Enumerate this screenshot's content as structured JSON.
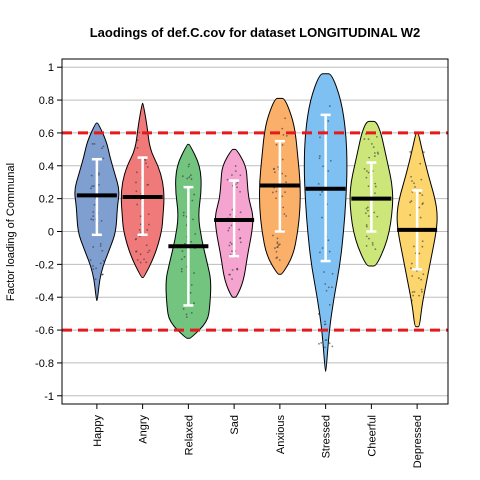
{
  "chart_data": {
    "type": "violin",
    "title": "Laodings of def.C.cov for dataset LONGITUDINAL W2",
    "ylabel": "Factor loading of Communal",
    "xlabel": "",
    "ylim": [
      -1.05,
      1.05
    ],
    "yticks": [
      1,
      0.8,
      0.6,
      0.4,
      0.2,
      0,
      -0.2,
      -0.4,
      -0.6,
      -0.8,
      -1
    ],
    "ytick_labels": [
      "1",
      "0.8",
      "0.6",
      "0.4",
      "0.2",
      "0",
      "-0.2",
      "-0.4",
      "-0.6",
      "-0.8",
      "-1"
    ],
    "grid": true,
    "reference_lines": {
      "values": [
        0.6,
        -0.6
      ],
      "color": "#e41a1c",
      "style": "dashed"
    },
    "categories": [
      "Happy",
      "Angry",
      "Relaxed",
      "Sad",
      "Anxious",
      "Stressed",
      "Cheerful",
      "Depressed"
    ],
    "colors": [
      "#7f9fd0",
      "#f07a7a",
      "#72c47f",
      "#f5a3cf",
      "#fbb06a",
      "#7fc0f2",
      "#cde67a",
      "#fcd56c"
    ],
    "medians": [
      0.22,
      0.21,
      -0.09,
      0.07,
      0.28,
      0.26,
      0.2,
      0.01
    ],
    "iqr_low": [
      -0.02,
      -0.02,
      -0.45,
      -0.15,
      0.0,
      -0.18,
      0.0,
      -0.23
    ],
    "iqr_high": [
      0.44,
      0.45,
      0.27,
      0.31,
      0.55,
      0.71,
      0.42,
      0.25
    ],
    "min": [
      -0.42,
      -0.28,
      -0.65,
      -0.4,
      -0.26,
      -0.85,
      -0.21,
      -0.58
    ],
    "max": [
      0.66,
      0.78,
      0.53,
      0.5,
      0.81,
      0.96,
      0.67,
      0.6
    ],
    "density": [
      {
        "y": [
          -0.42,
          -0.25,
          -0.1,
          0.0,
          0.15,
          0.25,
          0.35,
          0.45,
          0.55,
          0.66
        ],
        "w": [
          0.02,
          0.15,
          0.55,
          0.8,
          0.85,
          0.95,
          0.75,
          0.55,
          0.4,
          0.05
        ]
      },
      {
        "y": [
          -0.28,
          -0.15,
          0.0,
          0.1,
          0.2,
          0.3,
          0.4,
          0.5,
          0.65,
          0.78
        ],
        "w": [
          0.05,
          0.5,
          0.8,
          0.85,
          0.9,
          0.85,
          0.65,
          0.3,
          0.18,
          0.02
        ]
      },
      {
        "y": [
          -0.65,
          -0.55,
          -0.45,
          -0.3,
          -0.2,
          -0.05,
          0.1,
          0.25,
          0.4,
          0.53
        ],
        "w": [
          0.1,
          0.8,
          0.9,
          0.95,
          0.8,
          0.55,
          0.4,
          0.55,
          0.5,
          0.05
        ]
      },
      {
        "y": [
          -0.4,
          -0.3,
          -0.15,
          0.0,
          0.1,
          0.2,
          0.3,
          0.4,
          0.5
        ],
        "w": [
          0.1,
          0.4,
          0.55,
          0.75,
          0.8,
          0.6,
          0.55,
          0.5,
          0.1
        ]
      },
      {
        "y": [
          -0.26,
          -0.15,
          0.0,
          0.15,
          0.3,
          0.45,
          0.6,
          0.7,
          0.81
        ],
        "w": [
          0.1,
          0.55,
          0.75,
          0.85,
          0.85,
          0.75,
          0.65,
          0.5,
          0.2
        ]
      },
      {
        "y": [
          -0.85,
          -0.6,
          -0.4,
          -0.2,
          0.0,
          0.2,
          0.4,
          0.6,
          0.8,
          0.96
        ],
        "w": [
          0.02,
          0.15,
          0.35,
          0.6,
          0.75,
          0.85,
          0.9,
          0.85,
          0.65,
          0.25
        ]
      },
      {
        "y": [
          -0.21,
          -0.1,
          0.0,
          0.1,
          0.2,
          0.3,
          0.4,
          0.5,
          0.6,
          0.67
        ],
        "w": [
          0.2,
          0.55,
          0.75,
          0.85,
          0.9,
          0.85,
          0.7,
          0.55,
          0.4,
          0.2
        ]
      },
      {
        "y": [
          -0.58,
          -0.45,
          -0.3,
          -0.15,
          0.0,
          0.1,
          0.2,
          0.35,
          0.5,
          0.6
        ],
        "w": [
          0.1,
          0.2,
          0.4,
          0.6,
          0.8,
          0.85,
          0.75,
          0.45,
          0.2,
          0.05
        ]
      }
    ]
  }
}
